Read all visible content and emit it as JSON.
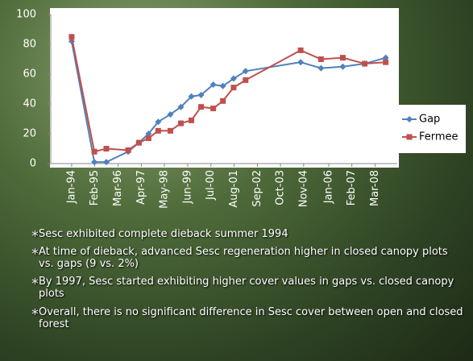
{
  "chart_data": {
    "type": "line",
    "x": [
      1994.0,
      1995.06,
      1995.62,
      1996.64,
      1997.14,
      1997.59,
      1998.04,
      1998.61,
      1999.1,
      1999.59,
      2000.04,
      2000.61,
      2001.06,
      2001.56,
      2002.12,
      2004.69,
      2005.64,
      2006.66,
      2007.68,
      2008.66
    ],
    "xlim": [
      1993.1,
      2009.2
    ],
    "xticks": [
      {
        "value": 1994.0,
        "label": "Jan-94"
      },
      {
        "value": 1995.08,
        "label": "Feb-95"
      },
      {
        "value": 1996.17,
        "label": "Mar-96"
      },
      {
        "value": 1997.25,
        "label": "Apr-97"
      },
      {
        "value": 1998.33,
        "label": "May-98"
      },
      {
        "value": 1999.42,
        "label": "Jun-99"
      },
      {
        "value": 2000.5,
        "label": "Jul-00"
      },
      {
        "value": 2001.58,
        "label": "Aug-01"
      },
      {
        "value": 2002.67,
        "label": "Sep-02"
      },
      {
        "value": 2003.75,
        "label": "Oct-03"
      },
      {
        "value": 2004.83,
        "label": "Nov-04"
      },
      {
        "value": 2006.0,
        "label": "Jan-06"
      },
      {
        "value": 2007.08,
        "label": "Feb-07"
      },
      {
        "value": 2008.17,
        "label": "Mar-08"
      }
    ],
    "ylim": [
      0,
      100
    ],
    "yticks": [
      0,
      20,
      40,
      60,
      80,
      100
    ],
    "legend": "right",
    "series": [
      {
        "name": "Gap",
        "color": "#4f81bd",
        "marker": "diamond",
        "values": [
          82,
          1,
          1,
          8,
          14,
          20,
          28,
          33,
          38,
          45,
          46,
          53,
          52,
          57,
          62,
          68,
          64,
          65,
          67,
          71
        ]
      },
      {
        "name": "Fermee",
        "color": "#c0504d",
        "marker": "square",
        "values": [
          85,
          8,
          10,
          9,
          14,
          17,
          22,
          22,
          27,
          29,
          38,
          37,
          42,
          51,
          56,
          76,
          70,
          71,
          67,
          68
        ]
      }
    ]
  },
  "bullets": [
    "Sesc exhibited complete dieback summer 1994",
    "At time of dieback, advanced Sesc regeneration higher in closed canopy plots vs. gaps (9 vs. 2%)",
    "By 1997, Sesc started exhibiting higher cover values in gaps vs. closed canopy plots",
    "Overall, there is no significant difference in Sesc cover between open and closed forest"
  ]
}
